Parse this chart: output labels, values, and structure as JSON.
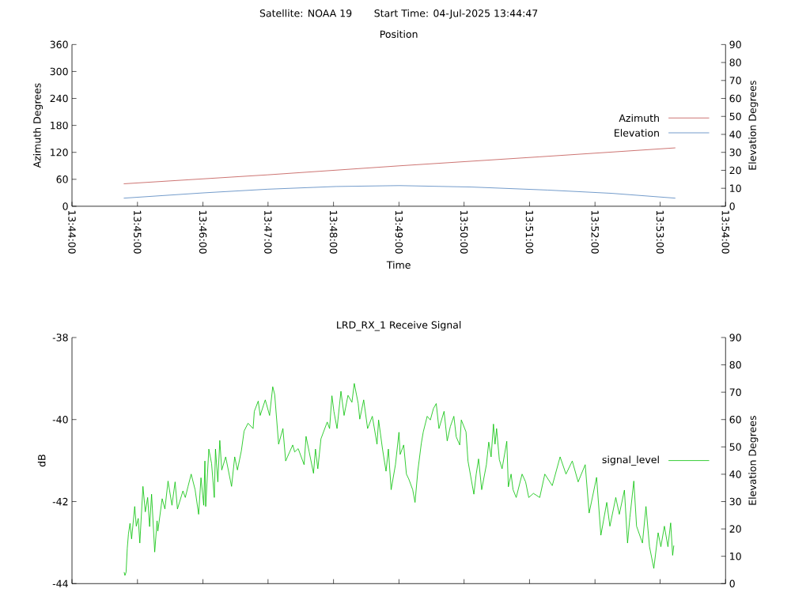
{
  "chart_data": [
    {
      "type": "line",
      "title": "Position",
      "annotations": [
        "Satellite: NOAA 19",
        "Start Time: 04-Jul-2025 13:44:47"
      ],
      "xlabel": "Time",
      "ylabel": "Azimuth Degrees",
      "y2label": "Elevation Degrees",
      "xlim": [
        13.7333,
        13.9
      ],
      "xticks": [
        {
          "value": 13.7333,
          "label": "13:44:00"
        },
        {
          "value": 13.75,
          "label": "13:45:00"
        },
        {
          "value": 13.7667,
          "label": "13:46:00"
        },
        {
          "value": 13.7833,
          "label": "13:47:00"
        },
        {
          "value": 13.8,
          "label": "13:48:00"
        },
        {
          "value": 13.8167,
          "label": "13:49:00"
        },
        {
          "value": 13.8333,
          "label": "13:50:00"
        },
        {
          "value": 13.85,
          "label": "13:51:00"
        },
        {
          "value": 13.8667,
          "label": "13:52:00"
        },
        {
          "value": 13.8833,
          "label": "13:53:00"
        },
        {
          "value": 13.9,
          "label": "13:54:00"
        }
      ],
      "ylim": [
        0,
        360
      ],
      "yticks": [
        0,
        60,
        120,
        180,
        240,
        300,
        360
      ],
      "y2lim": [
        0,
        90
      ],
      "y2ticks": [
        0,
        10,
        20,
        30,
        40,
        50,
        60,
        70,
        80,
        90
      ],
      "legend": "right",
      "series": [
        {
          "name": "Azimuth",
          "color": "#c0504d",
          "x": [
            13.7465,
            13.7833,
            13.8168,
            13.8525,
            13.8872
          ],
          "values": [
            50,
            70,
            90,
            110,
            130
          ]
        },
        {
          "name": "Elevation",
          "color": "#4f81bd",
          "axis": "y2",
          "x": [
            13.7465,
            13.7672,
            13.7833,
            13.8007,
            13.8168,
            13.8352,
            13.8547,
            13.8709,
            13.8872
          ],
          "values": [
            4.5,
            7.5,
            9.5,
            11.0,
            11.5,
            10.7,
            9.0,
            7.2,
            4.5
          ]
        }
      ]
    },
    {
      "type": "line",
      "title": "LRD_RX_1 Receive Signal",
      "ylabel": "dB",
      "y2label": "Elevation Degrees",
      "xlim": [
        13.7333,
        13.9
      ],
      "xticks": [
        {
          "value": 13.7333,
          "label": null
        },
        {
          "value": 13.75,
          "label": null
        },
        {
          "value": 13.7667,
          "label": null
        },
        {
          "value": 13.7833,
          "label": null
        },
        {
          "value": 13.8,
          "label": null
        },
        {
          "value": 13.8167,
          "label": null
        },
        {
          "value": 13.8333,
          "label": null
        },
        {
          "value": 13.85,
          "label": null
        },
        {
          "value": 13.8667,
          "label": null
        },
        {
          "value": 13.8833,
          "label": null
        },
        {
          "value": 13.9,
          "label": null
        }
      ],
      "ylim": [
        -44,
        -38
      ],
      "yticks": [
        -44,
        -42,
        -40,
        -38
      ],
      "y2lim": [
        0,
        90
      ],
      "y2ticks": [
        0,
        10,
        20,
        30,
        40,
        50,
        60,
        70,
        80,
        90
      ],
      "tick_labels": "y",
      "legend": "right",
      "series": [
        {
          "name": "signal_level",
          "color": "#00c000",
          "x": [
            13.7466,
            13.7468,
            13.7471,
            13.7474,
            13.7477,
            13.7481,
            13.7485,
            13.7493,
            13.7497,
            13.7502,
            13.7506,
            13.7514,
            13.752,
            13.7526,
            13.7531,
            13.7536,
            13.7544,
            13.755,
            13.7552,
            13.7563,
            13.757,
            13.7578,
            13.7588,
            13.7596,
            13.7602,
            13.7616,
            13.7622,
            13.7629,
            13.7637,
            13.7647,
            13.7656,
            13.7662,
            13.7669,
            13.7672,
            13.7674,
            13.7682,
            13.7689,
            13.7696,
            13.7699,
            13.7705,
            13.771,
            13.7715,
            13.7725,
            13.774,
            13.7748,
            13.7755,
            13.7765,
            13.7772,
            13.7782,
            13.7795,
            13.7798,
            13.7808,
            13.7813,
            13.7826,
            13.7837,
            13.7845,
            13.785,
            13.786,
            13.7871,
            13.7878,
            13.7896,
            13.7901,
            13.791,
            13.7925,
            13.793,
            13.7938,
            13.7949,
            13.7954,
            13.796,
            13.7968,
            13.7984,
            13.799,
            13.7996,
            13.8001,
            13.8009,
            13.8019,
            13.8027,
            13.8037,
            13.8047,
            13.8053,
            13.8063,
            13.8067,
            13.8077,
            13.8087,
            13.8099,
            13.8111,
            13.8115,
            13.8125,
            13.8134,
            13.814,
            13.8147,
            13.8158,
            13.8167,
            13.817,
            13.8179,
            13.8186,
            13.8192,
            13.8202,
            13.8208,
            13.8215,
            13.8224,
            13.8229,
            13.8239,
            13.8247,
            13.8255,
            13.8262,
            13.8269,
            13.8282,
            13.829,
            13.8298,
            13.8307,
            13.8313,
            13.8322,
            13.8326,
            13.8338,
            13.8343,
            13.8358,
            13.8364,
            13.837,
            13.8378,
            13.839,
            13.8396,
            13.8402,
            13.8408,
            13.8412,
            13.8416,
            13.8423,
            13.843,
            13.8442,
            13.8446,
            13.8453,
            13.8458,
            13.8466,
            13.8481,
            13.849,
            13.8498,
            13.851,
            13.8526,
            13.8539,
            13.8558,
            13.8578,
            13.8593,
            13.8609,
            13.8624,
            13.8642,
            13.8652,
            13.8671,
            13.8682,
            13.8697,
            13.8705,
            13.872,
            13.8729,
            13.8742,
            13.875,
            13.8756,
            13.8766,
            13.8773,
            13.8788,
            13.8797,
            13.8806,
            13.8817,
            13.8828,
            13.8835,
            13.8844,
            13.8853,
            13.886,
            13.8865,
            13.8868
          ],
          "values": [
            -43.72,
            -43.8,
            -43.72,
            -43.14,
            -42.79,
            -42.53,
            -42.91,
            -42.12,
            -42.6,
            -42.41,
            -43.01,
            -41.63,
            -42.25,
            -41.9,
            -42.61,
            -41.82,
            -43.23,
            -42.47,
            -42.72,
            -41.93,
            -42.18,
            -41.5,
            -42.09,
            -41.52,
            -42.18,
            -41.74,
            -41.9,
            -41.63,
            -41.33,
            -41.71,
            -42.31,
            -41.42,
            -42.09,
            -41.01,
            -42.12,
            -40.72,
            -41.07,
            -41.9,
            -40.72,
            -41.52,
            -40.51,
            -41.23,
            -40.91,
            -41.63,
            -40.91,
            -41.23,
            -40.76,
            -40.28,
            -40.09,
            -40.22,
            -39.8,
            -39.55,
            -39.9,
            -39.52,
            -39.9,
            -39.2,
            -39.39,
            -40.6,
            -40.22,
            -41.01,
            -40.62,
            -40.79,
            -40.71,
            -41.1,
            -40.41,
            -40.79,
            -41.31,
            -40.72,
            -41.2,
            -40.47,
            -40.06,
            -40.22,
            -39.42,
            -39.8,
            -40.22,
            -39.31,
            -39.9,
            -39.41,
            -39.58,
            -39.12,
            -39.61,
            -39.99,
            -39.52,
            -40.22,
            -39.92,
            -40.6,
            -40.01,
            -40.72,
            -41.26,
            -40.72,
            -41.71,
            -41.1,
            -40.31,
            -40.85,
            -40.62,
            -41.33,
            -41.45,
            -41.71,
            -42.02,
            -41.26,
            -40.58,
            -40.3,
            -39.92,
            -40.01,
            -39.73,
            -39.61,
            -40.22,
            -39.8,
            -40.52,
            -40.17,
            -39.92,
            -40.42,
            -40.62,
            -40.01,
            -40.3,
            -41.01,
            -41.82,
            -41.33,
            -40.96,
            -41.71,
            -41.1,
            -40.55,
            -40.91,
            -40.11,
            -40.6,
            -40.22,
            -40.98,
            -41.2,
            -40.53,
            -41.64,
            -41.33,
            -41.71,
            -41.9,
            -41.33,
            -41.52,
            -41.9,
            -41.8,
            -41.9,
            -41.33,
            -41.61,
            -40.91,
            -41.33,
            -41.01,
            -41.52,
            -41.1,
            -42.28,
            -41.41,
            -42.82,
            -42.02,
            -42.6,
            -41.9,
            -42.31,
            -41.72,
            -43.01,
            -42.38,
            -41.5,
            -42.6,
            -43.01,
            -42.12,
            -43.1,
            -43.63,
            -42.76,
            -43.1,
            -42.6,
            -43.1,
            -42.52,
            -43.31,
            -43.07
          ]
        }
      ]
    }
  ]
}
